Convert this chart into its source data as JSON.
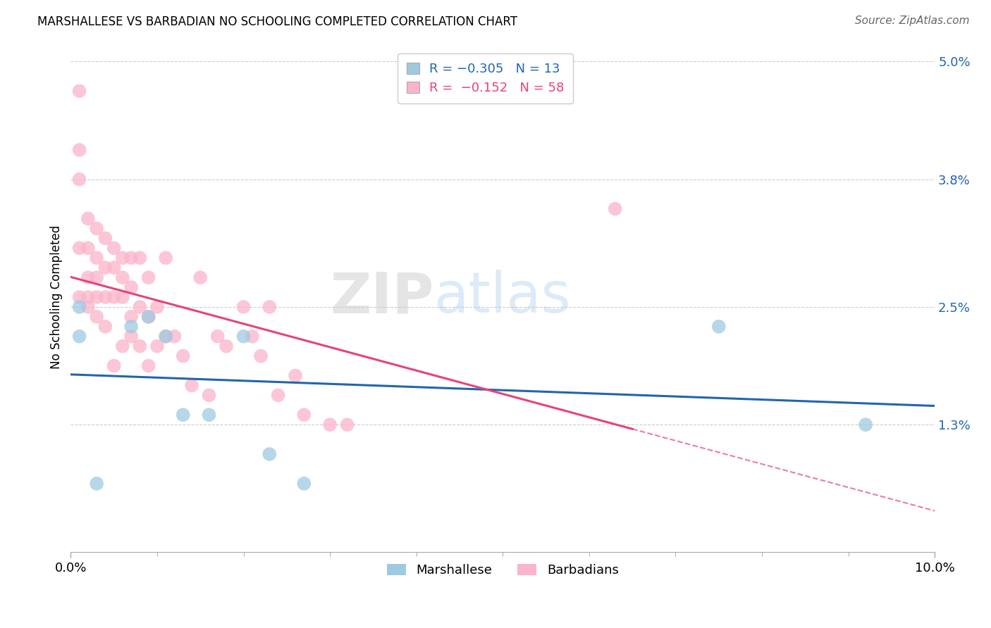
{
  "title": "MARSHALLESE VS BARBADIAN NO SCHOOLING COMPLETED CORRELATION CHART",
  "source": "Source: ZipAtlas.com",
  "ylabel": "No Schooling Completed",
  "xlim": [
    0.0,
    0.1
  ],
  "ylim": [
    0.0,
    0.052
  ],
  "yticks": [
    0.013,
    0.025,
    0.038,
    0.05
  ],
  "ytick_labels": [
    "1.3%",
    "2.5%",
    "3.8%",
    "5.0%"
  ],
  "color_blue": "#9ecae1",
  "color_pink": "#fbb4c9",
  "line_color_blue": "#2166ac",
  "line_color_pink": "#e8427c",
  "marshallese_x": [
    0.001,
    0.001,
    0.003,
    0.007,
    0.009,
    0.011,
    0.013,
    0.016,
    0.02,
    0.023,
    0.027,
    0.075,
    0.092
  ],
  "marshallese_y": [
    0.025,
    0.022,
    0.007,
    0.023,
    0.024,
    0.022,
    0.014,
    0.014,
    0.022,
    0.01,
    0.007,
    0.023,
    0.013
  ],
  "barbadians_x": [
    0.001,
    0.001,
    0.001,
    0.001,
    0.001,
    0.002,
    0.002,
    0.002,
    0.002,
    0.002,
    0.003,
    0.003,
    0.003,
    0.003,
    0.003,
    0.004,
    0.004,
    0.004,
    0.004,
    0.005,
    0.005,
    0.005,
    0.005,
    0.006,
    0.006,
    0.006,
    0.006,
    0.007,
    0.007,
    0.007,
    0.007,
    0.008,
    0.008,
    0.008,
    0.009,
    0.009,
    0.009,
    0.01,
    0.01,
    0.011,
    0.011,
    0.012,
    0.013,
    0.014,
    0.015,
    0.016,
    0.017,
    0.018,
    0.02,
    0.021,
    0.022,
    0.023,
    0.024,
    0.026,
    0.027,
    0.03,
    0.032,
    0.063
  ],
  "barbadians_y": [
    0.047,
    0.041,
    0.038,
    0.031,
    0.026,
    0.034,
    0.031,
    0.028,
    0.026,
    0.025,
    0.033,
    0.03,
    0.028,
    0.026,
    0.024,
    0.032,
    0.029,
    0.026,
    0.023,
    0.031,
    0.029,
    0.026,
    0.019,
    0.03,
    0.028,
    0.026,
    0.021,
    0.03,
    0.027,
    0.024,
    0.022,
    0.03,
    0.025,
    0.021,
    0.028,
    0.024,
    0.019,
    0.025,
    0.021,
    0.03,
    0.022,
    0.022,
    0.02,
    0.017,
    0.028,
    0.016,
    0.022,
    0.021,
    0.025,
    0.022,
    0.02,
    0.025,
    0.016,
    0.018,
    0.014,
    0.013,
    0.013,
    0.035
  ],
  "pink_line_x_end": 0.065,
  "blue_line_start_y": 0.0195,
  "blue_line_end_y": 0.012,
  "pink_line_start_y": 0.026,
  "pink_line_end_y": 0.014
}
